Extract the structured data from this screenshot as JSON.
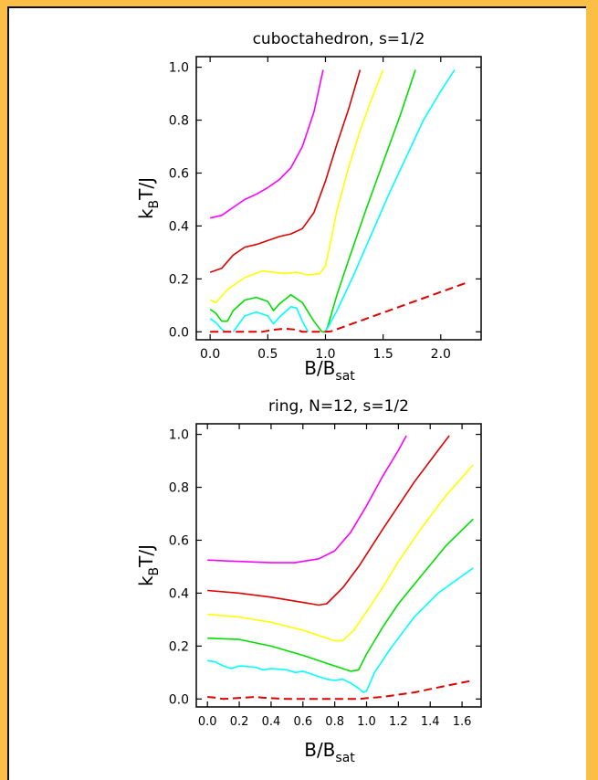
{
  "colors": {
    "background": "#fbbf47",
    "panel": "#ffffff",
    "magenta": "#ff00ff",
    "red": "#e00000",
    "yellow": "#ffff00",
    "green": "#00e000",
    "cyan": "#00ffff"
  },
  "chart_data": [
    {
      "type": "line",
      "title": "cuboctahedron, s=1/2",
      "ylabel": {
        "main": "k",
        "sub": "B",
        "rest": "T/J"
      },
      "xlabel": {
        "main": "B/B",
        "sub": "sat"
      },
      "xlim": [
        -0.12,
        2.35
      ],
      "ylim": [
        -0.03,
        1.04
      ],
      "xticks": [
        0.0,
        0.5,
        1.0,
        1.5,
        2.0
      ],
      "xtick_labels": [
        "0.0",
        "0.5",
        "1.0",
        "1.5",
        "2.0"
      ],
      "yticks": [
        0.0,
        0.2,
        0.4,
        0.6,
        0.8,
        1.0
      ],
      "ytick_labels": [
        "0.0",
        "0.2",
        "0.4",
        "0.6",
        "0.8",
        "1.0"
      ],
      "grid": false,
      "series": [
        {
          "color": "#ff00ff",
          "points": [
            [
              0,
              0.43
            ],
            [
              0.1,
              0.44
            ],
            [
              0.2,
              0.47
            ],
            [
              0.3,
              0.5
            ],
            [
              0.4,
              0.52
            ],
            [
              0.5,
              0.545
            ],
            [
              0.6,
              0.575
            ],
            [
              0.7,
              0.62
            ],
            [
              0.8,
              0.7
            ],
            [
              0.9,
              0.83
            ],
            [
              0.98,
              0.99
            ]
          ]
        },
        {
          "color": "#e00000",
          "points": [
            [
              0,
              0.225
            ],
            [
              0.1,
              0.24
            ],
            [
              0.2,
              0.29
            ],
            [
              0.3,
              0.32
            ],
            [
              0.4,
              0.33
            ],
            [
              0.5,
              0.345
            ],
            [
              0.6,
              0.36
            ],
            [
              0.7,
              0.37
            ],
            [
              0.8,
              0.39
            ],
            [
              0.9,
              0.45
            ],
            [
              1.0,
              0.57
            ],
            [
              1.1,
              0.71
            ],
            [
              1.2,
              0.84
            ],
            [
              1.3,
              0.99
            ]
          ]
        },
        {
          "color": "#ffff00",
          "points": [
            [
              0,
              0.12
            ],
            [
              0.05,
              0.11
            ],
            [
              0.15,
              0.16
            ],
            [
              0.3,
              0.205
            ],
            [
              0.45,
              0.23
            ],
            [
              0.55,
              0.225
            ],
            [
              0.65,
              0.22
            ],
            [
              0.75,
              0.225
            ],
            [
              0.85,
              0.215
            ],
            [
              0.95,
              0.22
            ],
            [
              1.0,
              0.25
            ],
            [
              1.05,
              0.35
            ],
            [
              1.1,
              0.46
            ],
            [
              1.2,
              0.62
            ],
            [
              1.3,
              0.76
            ],
            [
              1.4,
              0.88
            ],
            [
              1.5,
              0.99
            ]
          ]
        },
        {
          "color": "#00e000",
          "points": [
            [
              0,
              0.085
            ],
            [
              0.05,
              0.07
            ],
            [
              0.1,
              0.04
            ],
            [
              0.15,
              0.04
            ],
            [
              0.2,
              0.08
            ],
            [
              0.3,
              0.12
            ],
            [
              0.4,
              0.13
            ],
            [
              0.5,
              0.115
            ],
            [
              0.55,
              0.08
            ],
            [
              0.6,
              0.105
            ],
            [
              0.7,
              0.14
            ],
            [
              0.8,
              0.11
            ],
            [
              0.9,
              0.04
            ],
            [
              0.97,
              0.0
            ],
            [
              1.0,
              0.0
            ],
            [
              1.02,
              0.02
            ],
            [
              1.1,
              0.14
            ],
            [
              1.2,
              0.27
            ],
            [
              1.35,
              0.46
            ],
            [
              1.5,
              0.64
            ],
            [
              1.65,
              0.82
            ],
            [
              1.78,
              0.99
            ]
          ]
        },
        {
          "color": "#00ffff",
          "points": [
            [
              0,
              0.05
            ],
            [
              0.05,
              0.035
            ],
            [
              0.1,
              0.01
            ],
            [
              0.13,
              0.0
            ]
          ]
        },
        {
          "color": "#00ffff",
          "points": [
            [
              0.2,
              0.0
            ],
            [
              0.25,
              0.03
            ],
            [
              0.3,
              0.06
            ],
            [
              0.4,
              0.075
            ],
            [
              0.5,
              0.06
            ],
            [
              0.55,
              0.03
            ],
            [
              0.6,
              0.055
            ],
            [
              0.7,
              0.095
            ],
            [
              0.75,
              0.09
            ],
            [
              0.8,
              0.04
            ],
            [
              0.85,
              0.0
            ]
          ]
        },
        {
          "color": "#00ffff",
          "points": [
            [
              1.0,
              0.0
            ],
            [
              1.1,
              0.08
            ],
            [
              1.25,
              0.22
            ],
            [
              1.4,
              0.37
            ],
            [
              1.55,
              0.52
            ],
            [
              1.7,
              0.66
            ],
            [
              1.85,
              0.8
            ],
            [
              2.0,
              0.91
            ],
            [
              2.12,
              0.99
            ]
          ]
        },
        {
          "color": "#e00000",
          "dashed": true,
          "points": [
            [
              0,
              0.0
            ],
            [
              0.45,
              0.0
            ],
            [
              0.55,
              0.008
            ],
            [
              0.65,
              0.012
            ],
            [
              0.75,
              0.008
            ],
            [
              0.8,
              0.0
            ],
            [
              1.0,
              0.0
            ],
            [
              1.05,
              0.002
            ],
            [
              2.22,
              0.185
            ]
          ]
        }
      ]
    },
    {
      "type": "line",
      "title": "ring, N=12, s=1/2",
      "ylabel": {
        "main": "k",
        "sub": "B",
        "rest": "T/J"
      },
      "xlabel": {
        "main": "B/B",
        "sub": "sat"
      },
      "xlim": [
        -0.07,
        1.72
      ],
      "ylim": [
        -0.03,
        1.04
      ],
      "xticks": [
        0.0,
        0.2,
        0.4,
        0.6,
        0.8,
        1.0,
        1.2,
        1.4,
        1.6
      ],
      "xtick_labels": [
        "0.0",
        "0.2",
        "0.4",
        "0.6",
        "0.8",
        "1.0",
        "1.2",
        "1.4",
        "1.6"
      ],
      "yticks": [
        0.0,
        0.2,
        0.4,
        0.6,
        0.8,
        1.0
      ],
      "ytick_labels": [
        "0.0",
        "0.2",
        "0.4",
        "0.6",
        "0.8",
        "1.0"
      ],
      "grid": false,
      "series": [
        {
          "color": "#ff00ff",
          "points": [
            [
              0,
              0.525
            ],
            [
              0.2,
              0.52
            ],
            [
              0.4,
              0.515
            ],
            [
              0.55,
              0.515
            ],
            [
              0.7,
              0.53
            ],
            [
              0.8,
              0.56
            ],
            [
              0.9,
              0.63
            ],
            [
              1.0,
              0.73
            ],
            [
              1.1,
              0.84
            ],
            [
              1.2,
              0.94
            ],
            [
              1.25,
              0.995
            ]
          ]
        },
        {
          "color": "#e00000",
          "points": [
            [
              0,
              0.41
            ],
            [
              0.2,
              0.4
            ],
            [
              0.4,
              0.385
            ],
            [
              0.6,
              0.365
            ],
            [
              0.7,
              0.355
            ],
            [
              0.75,
              0.36
            ],
            [
              0.85,
              0.42
            ],
            [
              0.95,
              0.5
            ],
            [
              1.1,
              0.64
            ],
            [
              1.3,
              0.82
            ],
            [
              1.45,
              0.94
            ],
            [
              1.52,
              0.995
            ]
          ]
        },
        {
          "color": "#ffff00",
          "points": [
            [
              0,
              0.32
            ],
            [
              0.2,
              0.31
            ],
            [
              0.4,
              0.29
            ],
            [
              0.6,
              0.26
            ],
            [
              0.8,
              0.22
            ],
            [
              0.85,
              0.22
            ],
            [
              0.92,
              0.26
            ],
            [
              1.0,
              0.33
            ],
            [
              1.1,
              0.42
            ],
            [
              1.2,
              0.52
            ],
            [
              1.35,
              0.65
            ],
            [
              1.5,
              0.77
            ],
            [
              1.67,
              0.885
            ]
          ]
        },
        {
          "color": "#00e000",
          "points": [
            [
              0,
              0.23
            ],
            [
              0.2,
              0.225
            ],
            [
              0.4,
              0.2
            ],
            [
              0.6,
              0.165
            ],
            [
              0.8,
              0.125
            ],
            [
              0.9,
              0.105
            ],
            [
              0.95,
              0.11
            ],
            [
              1.0,
              0.17
            ],
            [
              1.1,
              0.27
            ],
            [
              1.2,
              0.36
            ],
            [
              1.35,
              0.47
            ],
            [
              1.5,
              0.58
            ],
            [
              1.67,
              0.68
            ]
          ]
        },
        {
          "color": "#00ffff",
          "points": [
            [
              0,
              0.145
            ],
            [
              0.05,
              0.14
            ],
            [
              0.1,
              0.125
            ],
            [
              0.15,
              0.115
            ],
            [
              0.2,
              0.125
            ],
            [
              0.3,
              0.12
            ],
            [
              0.35,
              0.11
            ],
            [
              0.4,
              0.115
            ],
            [
              0.5,
              0.11
            ],
            [
              0.55,
              0.1
            ],
            [
              0.6,
              0.105
            ],
            [
              0.7,
              0.085
            ],
            [
              0.75,
              0.075
            ],
            [
              0.8,
              0.07
            ],
            [
              0.85,
              0.075
            ],
            [
              0.9,
              0.06
            ],
            [
              0.95,
              0.04
            ],
            [
              0.98,
              0.025
            ],
            [
              1.0,
              0.03
            ],
            [
              1.05,
              0.1
            ],
            [
              1.15,
              0.19
            ],
            [
              1.3,
              0.31
            ],
            [
              1.45,
              0.4
            ],
            [
              1.67,
              0.495
            ]
          ]
        },
        {
          "color": "#e00000",
          "dashed": true,
          "points": [
            [
              0,
              0.008
            ],
            [
              0.05,
              0.005
            ],
            [
              0.1,
              0.0
            ],
            [
              0.3,
              0.008
            ],
            [
              0.35,
              0.005
            ],
            [
              0.5,
              0.0
            ],
            [
              0.95,
              0.0
            ],
            [
              1.0,
              0.003
            ],
            [
              1.1,
              0.008
            ],
            [
              1.3,
              0.025
            ],
            [
              1.5,
              0.05
            ],
            [
              1.67,
              0.07
            ]
          ]
        }
      ]
    }
  ]
}
